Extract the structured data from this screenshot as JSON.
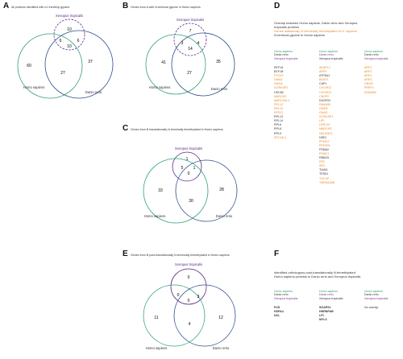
{
  "panels": {
    "A": {
      "label": "A",
      "title": "All proteins identified with ≥1 trimethyl glycine",
      "names": {
        "xen": "Xenopus tropicalis",
        "hum": "Homo sapiens",
        "dan": "Danio rerio"
      },
      "counts": {
        "hum_only": "60",
        "dan_only": "37",
        "xen_only": "10",
        "hum_xen": "6",
        "xen_dan": "6",
        "center": "10",
        "hum_dan": "27"
      }
    },
    "B": {
      "label": "B",
      "title": "Genes from A with N-terminal glycine in Homo sapiens",
      "names": {
        "xen": "Xenopus tropicalis",
        "hum": "Homo sapiens",
        "dan": "Danio rerio"
      },
      "counts": {
        "hum_only": "41",
        "dan_only": "35",
        "xen_only": "7",
        "hum_xen": "3",
        "xen_dan": "4",
        "center": "14",
        "hum_dan": "27"
      }
    },
    "C": {
      "label": "C",
      "title": "Genes from B translationally N-terminally trimethylated in Homo sapiens",
      "names": {
        "xen": "Xenopus tropicalis",
        "hum": "Homo sapiens",
        "dan": "Danio rerio"
      },
      "counts": {
        "hum_only": "33",
        "dan_only": "28",
        "xen_only": "1",
        "hum_xen": "5",
        "xen_dan": "1",
        "center": "0",
        "hum_dan": "30"
      }
    },
    "E": {
      "label": "E",
      "title": "Genes from B post-translationally N-terminally trimethylated in Homo sapiens",
      "names": {
        "xen": "Xenopus tropicalis",
        "hum": "Homo sapiens",
        "dan": "Danio rerio"
      },
      "counts": {
        "hum_only": "11",
        "dan_only": "12",
        "xen_only": "0",
        "hum_xen": "0",
        "xen_dan": "3",
        "center": "0",
        "hum_dan": "4"
      }
    },
    "D": {
      "label": "D",
      "title_lines": [
        "Overlap between Homo sapiens, Danio rerio and Xenopus",
        "tropicalis proteins"
      ],
      "legend_lines": [
        {
          "text": "Genes statistically N-terminally trimethylated in H. sapiens",
          "color": "o"
        },
        {
          "text": "N-terminal glycine in Homo sapiens",
          "color": "k"
        }
      ],
      "col_headers": [
        {
          "top": "Homo sapiens",
          "mid": "Danio rerio",
          "bot": "Xenopus tropicalis"
        },
        {
          "top": "Homo sapiens",
          "mid": "Danio rerio",
          "bot": "Xenopus tropicalis"
        },
        {
          "top": "Homo sapiens",
          "mid": "Danio rerio",
          "bot": "Xenopus tropicalis"
        }
      ],
      "col1": [
        {
          "t": "EEF1A",
          "c": "k"
        },
        {
          "t": "EEF1B",
          "c": "k"
        },
        {
          "t": "FTCD2",
          "c": "o"
        },
        {
          "t": "GNAI1",
          "c": "o"
        },
        {
          "t": "GNAI2",
          "c": "o"
        },
        {
          "t": "GORASP2",
          "c": "o"
        },
        {
          "t": "HSCB2",
          "c": "k"
        },
        {
          "t": "MARCKS",
          "c": "o"
        },
        {
          "t": "MARCKSL1",
          "c": "o"
        },
        {
          "t": "RPL12",
          "c": "o"
        },
        {
          "t": "RPL15",
          "c": "o"
        },
        {
          "t": "RPS21",
          "c": "o"
        },
        {
          "t": "RPL13",
          "c": "k"
        },
        {
          "t": "RPL14",
          "c": "k"
        },
        {
          "t": "RPL6",
          "c": "k"
        },
        {
          "t": "RPL8",
          "c": "k"
        },
        {
          "t": "RPL9",
          "c": "k"
        },
        {
          "t": "SEC14L1",
          "c": "o"
        }
      ],
      "col2": [
        {
          "t": "AKAP12",
          "c": "o"
        },
        {
          "t": "ARF6",
          "c": "o"
        },
        {
          "t": "ATP5A1",
          "c": "k"
        },
        {
          "t": "BASP1",
          "c": "o"
        },
        {
          "t": "CAP1",
          "c": "k"
        },
        {
          "t": "CHCHD2",
          "c": "o"
        },
        {
          "t": "CHCHD3",
          "c": "o"
        },
        {
          "t": "CNDP2",
          "c": "o"
        },
        {
          "t": "DUSP22",
          "c": "k"
        },
        {
          "t": "FAM49B",
          "c": "o"
        },
        {
          "t": "GMFB",
          "c": "o"
        },
        {
          "t": "GNAI1",
          "c": "o"
        },
        {
          "t": "GORASP1",
          "c": "o"
        },
        {
          "t": "LIPI",
          "c": "o"
        },
        {
          "t": "LRRC57",
          "c": "o"
        },
        {
          "t": "MARCKS",
          "c": "o"
        },
        {
          "t": "NDUFAF4",
          "c": "o"
        },
        {
          "t": "NSE1",
          "c": "k"
        },
        {
          "t": "PPM1G",
          "c": "o"
        },
        {
          "t": "PPP3R1",
          "c": "o"
        },
        {
          "t": "PSMA2",
          "c": "k"
        },
        {
          "t": "PSMC1",
          "c": "o"
        },
        {
          "t": "RBM15",
          "c": "k"
        },
        {
          "t": "RP2",
          "c": "o"
        },
        {
          "t": "SRC",
          "c": "o"
        },
        {
          "t": "TIAM1",
          "c": "k"
        },
        {
          "t": "TESK1",
          "c": "k"
        },
        {
          "t": "TOLLIP",
          "c": "o"
        },
        {
          "t": "TMEM106B",
          "c": "o"
        }
      ],
      "col3": [
        {
          "t": "ARF1",
          "c": "o"
        },
        {
          "t": "ARF3",
          "c": "o"
        },
        {
          "t": "ARF4",
          "c": "o"
        },
        {
          "t": "ARF5",
          "c": "o"
        },
        {
          "t": "GNAI3",
          "c": "o"
        },
        {
          "t": "PRPF4",
          "c": "o"
        },
        {
          "t": "SAMM50",
          "c": "o"
        }
      ]
    },
    "F": {
      "label": "F",
      "title_lines": [
        "Identified orthologous post-translationally N-trimethylated",
        "Homo sapiens proteins in Danio rerio and Xenopus tropicalis"
      ],
      "col_headers": [
        {
          "top": "Homo sapiens",
          "mid": "Danio rerio",
          "bot": "Xenopus tropicalis"
        },
        {
          "top": "Homo sapiens",
          "mid": "Danio rerio",
          "bot": "Xenopus tropicalis"
        },
        {
          "top": "Homo sapiens",
          "mid": "Danio rerio",
          "bot": "Xenopus tropicalis"
        }
      ],
      "col1": [
        "FUS",
        "HSPA4",
        "NCL"
      ],
      "col2": [
        "SGAPS1",
        "HNRNPAB",
        "LPI",
        "MYL6"
      ],
      "col3": [
        "No overlap"
      ]
    }
  },
  "colors": {
    "xen": "#5b2a86",
    "hum": "#2fa27a",
    "dan": "#2a4e8a",
    "orange": "#e8892a"
  }
}
